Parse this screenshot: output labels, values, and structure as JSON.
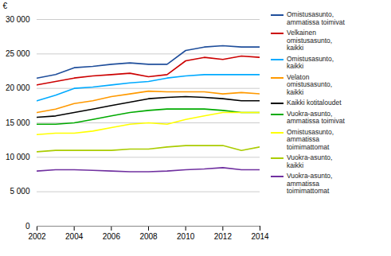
{
  "chart_data": {
    "type": "line",
    "x": [
      2002,
      2003,
      2004,
      2005,
      2006,
      2007,
      2008,
      2009,
      2010,
      2011,
      2012,
      2013,
      2014
    ],
    "series": [
      {
        "name": "Omistusasunto,\nammatissa toimivat",
        "color": "#1F4E9B",
        "values": [
          21500,
          22000,
          23000,
          23200,
          23500,
          23700,
          23500,
          23500,
          25500,
          26000,
          26200,
          26000,
          26000
        ]
      },
      {
        "name": "Velkainen\nomistusasunto,\nkaikki",
        "color": "#CC0000",
        "values": [
          20500,
          21000,
          21500,
          21800,
          22000,
          22200,
          21700,
          22000,
          24000,
          24500,
          24200,
          24700,
          24500
        ]
      },
      {
        "name": "Omistusasunto,\nkaikki",
        "color": "#00AAFF",
        "values": [
          18200,
          19000,
          20000,
          20200,
          20500,
          20800,
          21000,
          21500,
          21800,
          22000,
          22000,
          22000,
          22000
        ]
      },
      {
        "name": "Velaton\nomistusasunto,\nkaikki",
        "color": "#FF9900",
        "values": [
          16500,
          17000,
          17800,
          18200,
          18800,
          19200,
          19600,
          19500,
          19500,
          19500,
          19200,
          19400,
          19200
        ]
      },
      {
        "name": "Kaikki kotitaloudet",
        "color": "#000000",
        "values": [
          15800,
          16000,
          16500,
          17000,
          17500,
          18000,
          18500,
          18700,
          18800,
          18700,
          18500,
          18200,
          18200
        ]
      },
      {
        "name": "Vuokra-asunto,\nammatissa toimivat",
        "color": "#00AA00",
        "values": [
          14800,
          14800,
          15000,
          15500,
          16000,
          16500,
          16800,
          17000,
          17000,
          17000,
          16800,
          16500,
          16500
        ]
      },
      {
        "name": "Omistusasunto,\nammatissa\ntoimimattomat",
        "color": "#FFFF00",
        "values": [
          13300,
          13500,
          13500,
          13800,
          14300,
          14800,
          15000,
          14800,
          15500,
          16000,
          16500,
          16500,
          16500
        ]
      },
      {
        "name": "Vuokra-asunto,\nkaikki",
        "color": "#AACC00",
        "values": [
          10800,
          11000,
          11000,
          11000,
          11000,
          11200,
          11200,
          11500,
          11700,
          11700,
          11700,
          11000,
          11500
        ]
      },
      {
        "name": "Vuokra-asunto,\nammatissa\ntoimimattomat",
        "color": "#7030A0",
        "values": [
          8000,
          8200,
          8200,
          8100,
          8000,
          7900,
          7900,
          8000,
          8200,
          8300,
          8500,
          8200,
          8200
        ]
      }
    ],
    "xlim": [
      2002,
      2014
    ],
    "xticks": [
      2002,
      2004,
      2006,
      2008,
      2010,
      2012,
      2014
    ],
    "ylim": [
      0,
      30000
    ],
    "yticks": [
      0,
      {
        "value": 5000,
        "label": "5 000"
      },
      {
        "value": 10000,
        "label": "10 000"
      },
      {
        "value": 15000,
        "label": "15 000"
      },
      {
        "value": 20000,
        "label": "20 000"
      },
      {
        "value": 25000,
        "label": "25 000"
      },
      {
        "value": 30000,
        "label": "30 000"
      }
    ],
    "ylabel": "€",
    "grid": true,
    "legend": "right"
  }
}
